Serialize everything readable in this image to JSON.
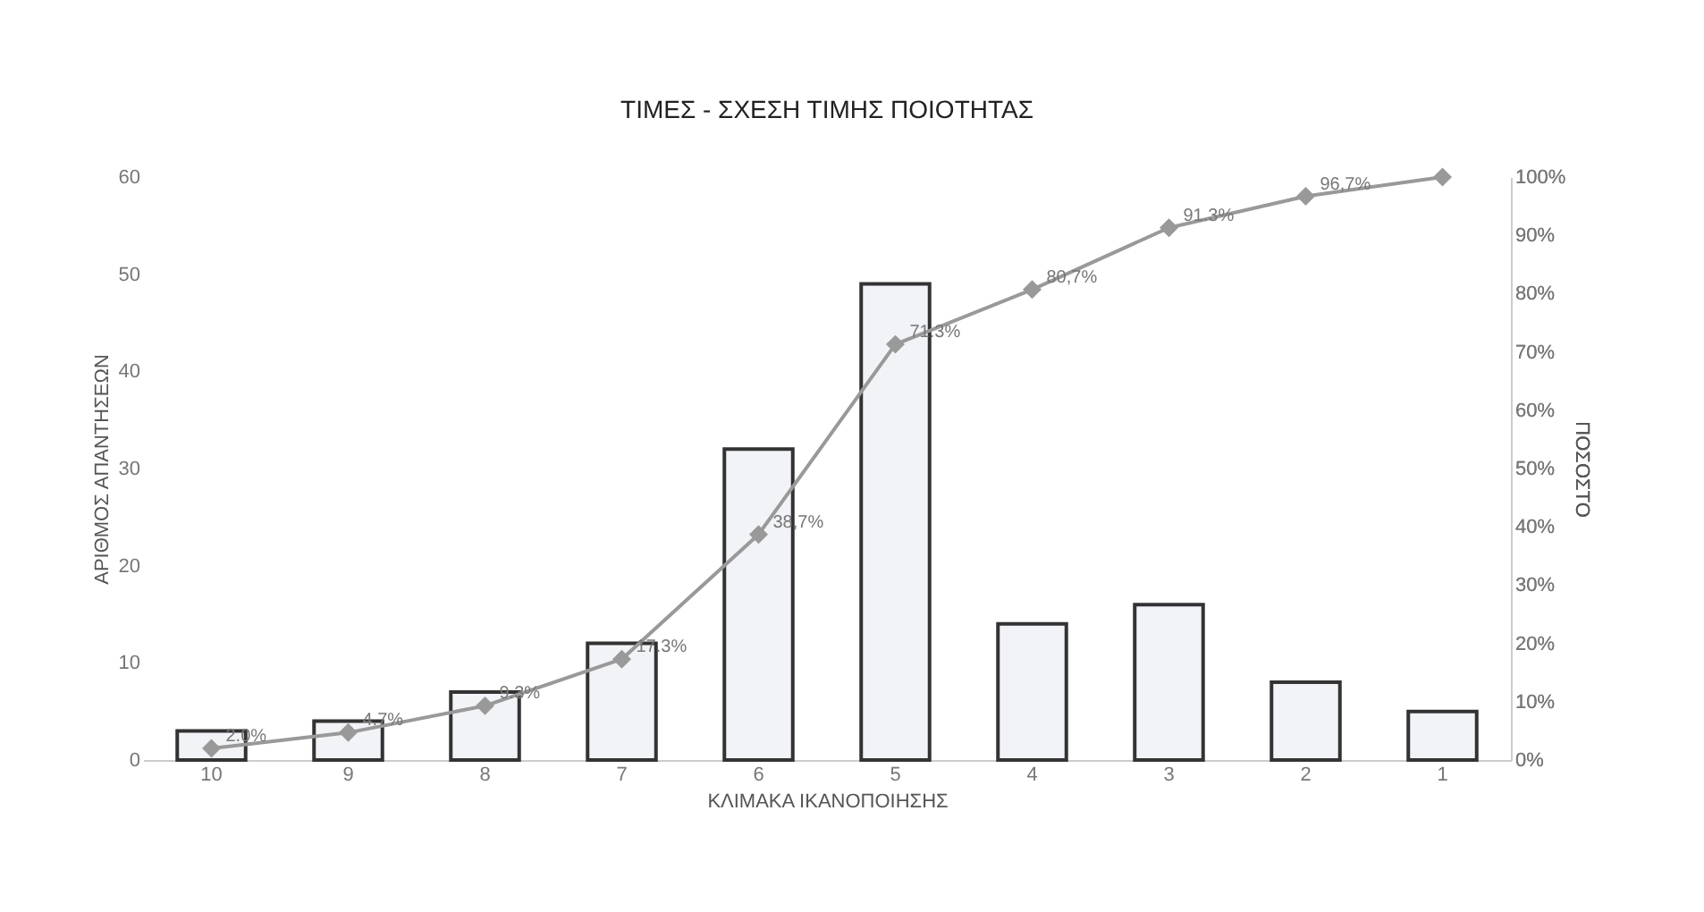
{
  "chart_data": {
    "type": "bar",
    "title": "ΤΙΜΕΣ - ΣΧΕΣΗ ΤΙΜΗΣ ΠΟΙΟΤΗΤΑΣ",
    "xlabel": "ΚΛΙΜΑΚΑ ΙΚΑΝΟΠΟΙΗΣΗΣ",
    "ylabel": "ΑΡΙΘΜΟΣ ΑΠΑΝΤΗΣΕΩΝ",
    "y2label": "ΠΟΣΟΣΤΟ",
    "categories": [
      "10",
      "9",
      "8",
      "7",
      "6",
      "5",
      "4",
      "3",
      "2",
      "1"
    ],
    "series": [
      {
        "color": "#f1f3f7",
        "values": [
          3,
          4,
          7,
          12,
          32,
          49,
          14,
          16,
          8,
          5
        ]
      },
      {
        "type": "line",
        "axis": "y2",
        "color": "#999999",
        "marker": "diamond",
        "values": [
          2.0,
          4.7,
          9.3,
          17.3,
          38.7,
          71.3,
          80.7,
          91.3,
          96.7,
          100
        ],
        "value_labels": [
          "2.0%",
          "4.7%",
          "9.3%",
          "17.3%",
          "38,7%",
          "71.3%",
          "80,7%",
          "91.3%",
          "96,7%",
          null
        ]
      }
    ],
    "ylim": [
      0,
      60
    ],
    "yticks": [
      0,
      10,
      20,
      30,
      40,
      50,
      60
    ],
    "y2lim": [
      0,
      100
    ],
    "y2ticks": [
      {
        "value": 0,
        "label": "0%"
      },
      {
        "value": 10,
        "label": "10%"
      },
      {
        "value": 20,
        "label": "20%"
      },
      {
        "value": 30,
        "label": "30%"
      },
      {
        "value": 40,
        "label": "40%"
      },
      {
        "value": 50,
        "label": "50%"
      },
      {
        "value": 60,
        "label": "60%"
      },
      {
        "value": 70,
        "label": "70%"
      },
      {
        "value": 80,
        "label": "80%"
      },
      {
        "value": 90,
        "label": "90%"
      },
      {
        "value": 100,
        "label": "100%"
      }
    ],
    "grid": false
  }
}
